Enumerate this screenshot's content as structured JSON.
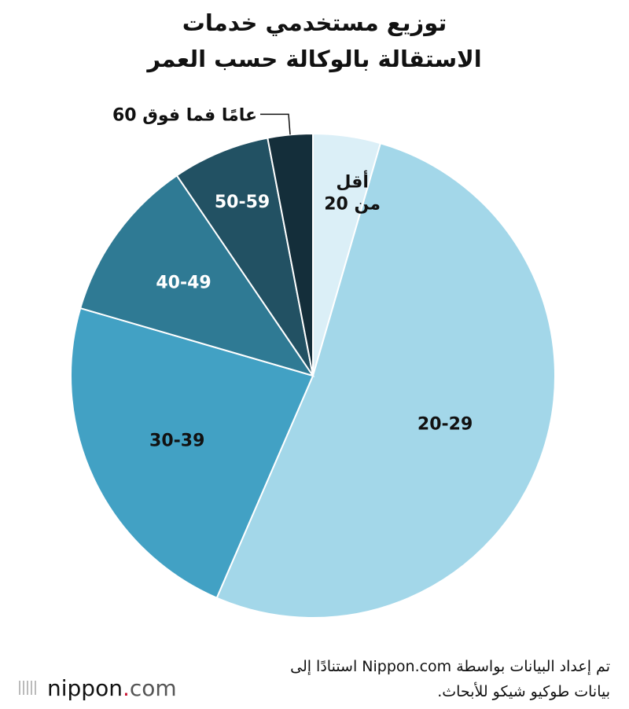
{
  "title": {
    "line1": "توزيع مستخدمي خدمات",
    "line2": "الاستقالة بالوكالة حسب العمر"
  },
  "source": {
    "line1": "تم إعداد البيانات بواسطة Nippon.com استنادًا إلى",
    "line2": "بيانات طوكيو شيكو للأبحاث."
  },
  "logo": {
    "name": "nippon",
    "dot": ".",
    "tld": "com"
  },
  "chart_data": {
    "type": "pie",
    "start_angle_deg": 0,
    "direction": "clockwise",
    "slices": [
      {
        "label": "أقل من 20",
        "label_lines": [
          "أقل",
          "من 20"
        ],
        "value": 4.5,
        "color": "#dbeff7",
        "text_color": "#111111"
      },
      {
        "label": "20-29",
        "value": 52.0,
        "color": "#a3d7e9",
        "text_color": "#111111"
      },
      {
        "label": "30-39",
        "value": 23.0,
        "color": "#42a1c4",
        "text_color": "#111111"
      },
      {
        "label": "40-49",
        "value": 11.0,
        "color": "#2f7a94",
        "text_color": "#ffffff"
      },
      {
        "label": "50-59",
        "value": 6.5,
        "color": "#225163",
        "text_color": "#ffffff"
      },
      {
        "label": "60 عامًا فما فوق",
        "value": 3.0,
        "color": "#142e3a",
        "text_color": "#111111",
        "callout": true
      }
    ]
  }
}
